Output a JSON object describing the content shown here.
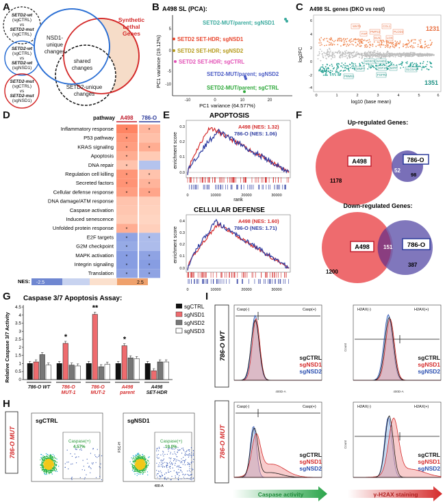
{
  "panels": {
    "A": "A",
    "B": "B",
    "C": "C",
    "D": "D",
    "E": "E",
    "F": "F",
    "G": "G",
    "H": "H",
    "I": "I"
  },
  "panelA": {
    "circle1": [
      "SETD2-wt",
      "(sgCTRL)",
      "vs",
      "SETD2-mut",
      "(sgCTRL)"
    ],
    "circle2": [
      "SETD2-wt",
      "(sgCTRL)",
      "vs",
      "SETD2-wt",
      "(sgNSD1)"
    ],
    "circle3": [
      "SETD2-mut",
      "(sgCTRL)",
      "vs",
      "SETD2-mut",
      "(sgNSD1)"
    ],
    "nsd1_unique": [
      "NSD1-",
      "unique",
      "changes"
    ],
    "shared": [
      "shared",
      "changes"
    ],
    "setd2_unique": [
      "SETD2-unique",
      "changes"
    ],
    "synthetic": [
      "Synthetic",
      "Lethal",
      "Genes"
    ]
  },
  "panelB": {
    "title": "A498 SL (PCA):",
    "xlabel": "PC1 variance (64.577%)",
    "ylabel": "PC1 variance (19.12%)",
    "xticks": [
      "-10",
      "0",
      "10",
      "20"
    ],
    "yticks": [
      "5",
      "0",
      "-5",
      "-10"
    ],
    "labels": [
      {
        "text": "SETD2-MUT/parent; sgNSD1",
        "color": "#3aaa9e"
      },
      {
        "text": "SETD2 SET-HDR; sgNSD1",
        "color": "#e8452c"
      },
      {
        "text": "SETD2 SET-HDR; sgNSD2",
        "color": "#b59a1a"
      },
      {
        "text": "SETD2 SET-HDR; sgCTRL",
        "color": "#e24fb5"
      },
      {
        "text": "SETD2-MUT/parent; sgNSD2",
        "color": "#4a5bc4"
      },
      {
        "text": "SETD2-MUT/parent; sgCTRL",
        "color": "#2ea83a"
      }
    ]
  },
  "panelC": {
    "title": "A498 SL genes (DKO vs rest)",
    "xlabel": "log10 (base mean)",
    "ylabel": "log2FC",
    "up_count": "1231",
    "down_count": "1351",
    "up_genes": [
      "WNT5",
      "FAP",
      "PMP22",
      "COL1",
      "PLOD3",
      "LOX",
      "ELN"
    ],
    "down_genes": [
      "HOXC9",
      "SAND1",
      "IGF1R",
      "MITF",
      "SLC6A6",
      "PBMS1",
      "MMP7",
      "FGFR2"
    ],
    "xticks": [
      "0",
      "1",
      "2",
      "3",
      "4",
      "5",
      "6"
    ],
    "yticks": [
      "6",
      "4",
      "2",
      "0",
      "-2",
      "-4"
    ]
  },
  "panelD": {
    "header_pathway": "pathway",
    "header_a": "A498",
    "header_b": "786-O",
    "rows": [
      {
        "name": "Inflammatory response",
        "a": 0.72,
        "b": 0.38,
        "sa": "*",
        "sb": "*"
      },
      {
        "name": "P53 pathway",
        "a": 0.6,
        "b": 0.32,
        "sa": "*",
        "sb": ""
      },
      {
        "name": "KRAS signaling",
        "a": 0.55,
        "b": 0.45,
        "sa": "*",
        "sb": "*"
      },
      {
        "name": "Apoptosis",
        "a": 0.45,
        "b": 0.25,
        "sa": "*",
        "sb": ""
      },
      {
        "name": "DNA repair",
        "a": 0.3,
        "b": -0.3,
        "sa": "*",
        "sb": ""
      },
      {
        "name": "Regulation cell killing",
        "a": 0.6,
        "b": 0.3,
        "sa": "*",
        "sb": "*"
      },
      {
        "name": "Secreted factors",
        "a": 0.62,
        "b": 0.4,
        "sa": "*",
        "sb": "*"
      },
      {
        "name": "Cellular defense response",
        "a": 0.55,
        "b": 0.5,
        "sa": "*",
        "sb": "*"
      },
      {
        "name": "DNA damage/ATM response",
        "a": 0.3,
        "b": 0.22,
        "sa": "",
        "sb": ""
      },
      {
        "name": "Caspase activation",
        "a": 0.28,
        "b": 0.2,
        "sa": "",
        "sb": ""
      },
      {
        "name": "Induced senescence",
        "a": 0.25,
        "b": 0.18,
        "sa": "",
        "sb": ""
      },
      {
        "name": "Unfolded protein response",
        "a": 0.45,
        "b": 0.22,
        "sa": "*",
        "sb": ""
      },
      {
        "name": "E2F targets",
        "a": -0.55,
        "b": -0.35,
        "sa": "*",
        "sb": "*"
      },
      {
        "name": "G2M checkpoint",
        "a": -0.5,
        "b": -0.35,
        "sa": "*",
        "sb": ""
      },
      {
        "name": "MAPK activation",
        "a": -0.6,
        "b": -0.55,
        "sa": "*",
        "sb": "*"
      },
      {
        "name": "Integrin signaling",
        "a": -0.6,
        "b": -0.6,
        "sa": "*",
        "sb": "*"
      },
      {
        "name": "Translation",
        "a": -0.55,
        "b": -0.55,
        "sa": "*",
        "sb": "*"
      }
    ],
    "nes_label": "NES:",
    "nes_min": "-2.5",
    "nes_max": "2.5"
  },
  "panelE": {
    "plot1": {
      "title": "APOPTOSIS",
      "ylabel": "enrichment score",
      "xlabel": "rank",
      "a498": "A498 (NES: 1.32)",
      "o786": "786-O (NES: 1.06)",
      "yticks": [
        "0.3",
        "0.2",
        "0.1",
        "0.0"
      ],
      "xticks": [
        "0",
        "10000",
        "20000",
        "30000"
      ]
    },
    "plot2": {
      "title": "CELLULAR DEFENSE",
      "ylabel": "enrichment score",
      "xlabel": "rank",
      "a498": "A498 (NES: 1.60)",
      "o786": "786-O (NES: 1.71)",
      "yticks": [
        "0.4",
        "0.3",
        "0.2",
        "0.1",
        "0.0"
      ],
      "xticks": [
        "0",
        "10000",
        "20000",
        "30000"
      ]
    }
  },
  "panelF": {
    "up_title": "Up-regulated Genes:",
    "down_title": "Down-regulated Genes:",
    "up": {
      "a": "A498",
      "b": "786-O",
      "a_only": "1178",
      "shared": "52",
      "b_only": "98"
    },
    "down": {
      "a": "A498",
      "b": "786-O",
      "a_only": "1200",
      "shared": "151",
      "b_only": "387"
    }
  },
  "panelG": {
    "title": "Caspase 3/7 Apoptosis Assay:",
    "ylabel": "Relative Caspase 3/7 Activity",
    "yticks": [
      "4.5",
      "4",
      "3.5",
      "3",
      "2.5",
      "2",
      "1.5",
      "1",
      "0.5",
      "0"
    ],
    "legend": [
      "sgCTRL",
      "sgNSD1",
      "sgNSD2",
      "sgNSD3"
    ],
    "groups": [
      {
        "label1": "786-O WT",
        "label2": "",
        "color": "#111",
        "values": [
          1.0,
          1.1,
          1.55,
          0.9
        ],
        "star": ""
      },
      {
        "label1": "786-O",
        "label2": "MUT-1",
        "color": "#d42a2a",
        "values": [
          1.0,
          2.25,
          0.9,
          0.85
        ],
        "star": "*"
      },
      {
        "label1": "786-O",
        "label2": "MUT-2",
        "color": "#d42a2a",
        "values": [
          1.0,
          4.05,
          0.8,
          0.95
        ],
        "star": "**"
      },
      {
        "label1": "A498",
        "label2": "parent",
        "color": "#d42a2a",
        "values": [
          1.0,
          2.1,
          1.35,
          1.3
        ],
        "star": "*"
      },
      {
        "label1": "A498",
        "label2": "SET-HDR",
        "color": "#111",
        "values": [
          1.0,
          0.55,
          1.1,
          1.1
        ],
        "star": ""
      }
    ]
  },
  "panelH": {
    "side": "786-O MUT",
    "left_title": "sgCTRL",
    "right_title": "sgNSD1",
    "gate": "Caspase(+)",
    "left_pct": "4.57%",
    "right_pct": "19.0%",
    "ylabel": "FSC-H",
    "xlabel": "488-A"
  },
  "panelI": {
    "side_top": "786-O WT",
    "side_bottom": "786-O MUT",
    "casp_neg": "Casp(-)",
    "casp_pos": "Casp(+)",
    "h2ax_neg": "H2AX(-)",
    "h2ax_pos": "H2AX(+)",
    "legend": [
      {
        "text": "sgCTRL",
        "color": "#111"
      },
      {
        "text": "sgNSD1",
        "color": "#d42a2a"
      },
      {
        "text": "sgNSD2",
        "color": "#2b4fb0"
      }
    ],
    "xaxis_casp": "400D-A",
    "xaxis_h2ax": "400D-A",
    "yaxis": "Count",
    "arrow_left": "Caspase activity",
    "arrow_right": "γ-H2AX staining"
  }
}
